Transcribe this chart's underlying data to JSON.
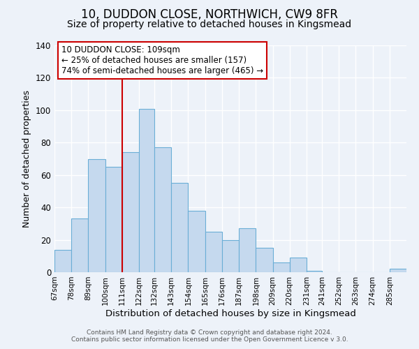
{
  "title": "10, DUDDON CLOSE, NORTHWICH, CW9 8FR",
  "subtitle": "Size of property relative to detached houses in Kingsmead",
  "xlabel": "Distribution of detached houses by size in Kingsmead",
  "ylabel": "Number of detached properties",
  "bin_labels": [
    "67sqm",
    "78sqm",
    "89sqm",
    "100sqm",
    "111sqm",
    "122sqm",
    "132sqm",
    "143sqm",
    "154sqm",
    "165sqm",
    "176sqm",
    "187sqm",
    "198sqm",
    "209sqm",
    "220sqm",
    "231sqm",
    "241sqm",
    "252sqm",
    "263sqm",
    "274sqm",
    "285sqm"
  ],
  "bar_heights": [
    14,
    33,
    70,
    65,
    74,
    101,
    77,
    55,
    38,
    25,
    20,
    27,
    15,
    6,
    9,
    1,
    0,
    0,
    0,
    0,
    2
  ],
  "bar_color": "#c5d9ee",
  "bar_edge_color": "#6aaed6",
  "vline_x": 111,
  "vline_color": "#cc0000",
  "ylim": [
    0,
    140
  ],
  "yticks": [
    0,
    20,
    40,
    60,
    80,
    100,
    120,
    140
  ],
  "bin_edges": [
    67,
    78,
    89,
    100,
    111,
    122,
    132,
    143,
    154,
    165,
    176,
    187,
    198,
    209,
    220,
    231,
    241,
    252,
    263,
    274,
    285,
    296
  ],
  "annotation_title": "10 DUDDON CLOSE: 109sqm",
  "annotation_line1": "← 25% of detached houses are smaller (157)",
  "annotation_line2": "74% of semi-detached houses are larger (465) →",
  "annotation_box_color": "#ffffff",
  "annotation_box_edge": "#cc0000",
  "footer_line1": "Contains HM Land Registry data © Crown copyright and database right 2024.",
  "footer_line2": "Contains public sector information licensed under the Open Government Licence v 3.0.",
  "background_color": "#edf2f9",
  "plot_bg_color": "#edf2f9",
  "grid_color": "#ffffff",
  "title_fontsize": 12,
  "subtitle_fontsize": 10
}
